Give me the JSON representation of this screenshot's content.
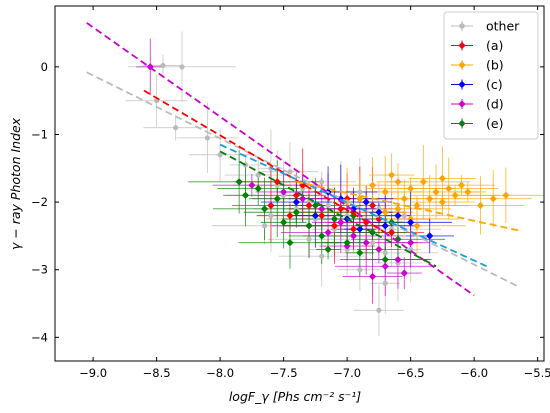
{
  "chart_data": {
    "type": "scatter",
    "xlabel": "logF_γ  [Phs cm⁻² s⁻¹]",
    "ylabel": "γ − ray  Photon  Index",
    "xlim": [
      -9.3,
      -5.45
    ],
    "ylim": [
      -4.35,
      0.9
    ],
    "x_ticks": [
      -9.0,
      -8.5,
      -8.0,
      -7.5,
      -7.0,
      -6.5,
      -6.0,
      -5.5
    ],
    "x_tick_labels": [
      "−9.0",
      "−8.5",
      "−8.0",
      "−7.5",
      "−7.0",
      "−6.5",
      "−6.0",
      "−5.5"
    ],
    "y_ticks": [
      0,
      -1,
      -2,
      -3,
      -4
    ],
    "y_tick_labels": [
      "0",
      "−1",
      "−2",
      "−3",
      "−4"
    ],
    "grid": false,
    "legend_position": "top-right",
    "series": [
      {
        "name": "other",
        "color": "#bbbbbb",
        "marker": "circle",
        "points": [
          [
            -8.45,
            0.02
          ],
          [
            -8.3,
            0.0
          ],
          [
            -8.5,
            -0.5
          ],
          [
            -8.35,
            -0.9
          ],
          [
            -8.1,
            -1.05
          ],
          [
            -8.0,
            -1.3
          ],
          [
            -7.8,
            -1.45
          ],
          [
            -7.7,
            -1.6
          ],
          [
            -7.6,
            -1.5
          ],
          [
            -7.55,
            -1.75
          ],
          [
            -7.5,
            -1.9
          ],
          [
            -7.45,
            -1.55
          ],
          [
            -7.4,
            -2.1
          ],
          [
            -7.35,
            -1.8
          ],
          [
            -7.3,
            -2.0
          ],
          [
            -7.25,
            -2.25
          ],
          [
            -7.2,
            -1.7
          ],
          [
            -7.15,
            -2.05
          ],
          [
            -7.1,
            -2.4
          ],
          [
            -7.05,
            -1.95
          ],
          [
            -7.0,
            -2.2
          ],
          [
            -6.95,
            -2.5
          ],
          [
            -6.9,
            -1.85
          ],
          [
            -6.85,
            -2.3
          ],
          [
            -6.8,
            -2.6
          ],
          [
            -6.75,
            -2.1
          ],
          [
            -6.7,
            -2.75
          ],
          [
            -6.65,
            -2.4
          ],
          [
            -6.6,
            -2.9
          ],
          [
            -6.55,
            -2.2
          ],
          [
            -6.5,
            -2.7
          ],
          [
            -7.6,
            -2.2
          ],
          [
            -7.3,
            -2.55
          ],
          [
            -7.0,
            -2.7
          ],
          [
            -6.9,
            -3.0
          ],
          [
            -7.8,
            -1.9
          ],
          [
            -7.65,
            -2.35
          ],
          [
            -6.7,
            -3.2
          ],
          [
            -6.75,
            -3.6
          ],
          [
            -7.2,
            -2.8
          ]
        ]
      },
      {
        "name": "(a)",
        "color": "#ff0000",
        "marker": "diamond",
        "points": [
          [
            -7.55,
            -1.7
          ],
          [
            -7.4,
            -1.9
          ],
          [
            -7.3,
            -2.05
          ],
          [
            -7.15,
            -1.85
          ],
          [
            -7.05,
            -2.1
          ],
          [
            -6.95,
            -2.15
          ],
          [
            -6.9,
            -1.95
          ],
          [
            -6.85,
            -2.3
          ],
          [
            -6.8,
            -2.05
          ],
          [
            -7.2,
            -2.2
          ],
          [
            -7.0,
            -1.95
          ],
          [
            -6.75,
            -2.25
          ],
          [
            -7.1,
            -2.35
          ],
          [
            -7.45,
            -2.2
          ],
          [
            -6.65,
            -2.45
          ],
          [
            -7.35,
            -1.75
          ],
          [
            -6.95,
            -2.4
          ],
          [
            -7.6,
            -2.05
          ]
        ]
      },
      {
        "name": "(b)",
        "color": "#ffa500",
        "marker": "diamond",
        "points": [
          [
            -6.8,
            -1.75
          ],
          [
            -6.7,
            -1.85
          ],
          [
            -6.6,
            -1.7
          ],
          [
            -6.55,
            -1.95
          ],
          [
            -6.5,
            -1.8
          ],
          [
            -6.45,
            -2.05
          ],
          [
            -6.4,
            -1.7
          ],
          [
            -6.35,
            -1.95
          ],
          [
            -6.3,
            -1.85
          ],
          [
            -6.25,
            -2.0
          ],
          [
            -6.2,
            -1.8
          ],
          [
            -6.15,
            -1.9
          ],
          [
            -6.1,
            -1.75
          ],
          [
            -6.05,
            -1.85
          ],
          [
            -5.95,
            -2.05
          ],
          [
            -5.85,
            -1.95
          ],
          [
            -5.75,
            -1.9
          ],
          [
            -6.6,
            -2.1
          ],
          [
            -6.5,
            -2.25
          ],
          [
            -6.45,
            -2.35
          ],
          [
            -6.9,
            -1.95
          ],
          [
            -6.7,
            -2.15
          ],
          [
            -6.65,
            -1.6
          ],
          [
            -7.0,
            -2.0
          ],
          [
            -6.25,
            -1.65
          ]
        ]
      },
      {
        "name": "(c)",
        "color": "#0000ff",
        "marker": "diamond",
        "points": [
          [
            -7.15,
            -1.85
          ],
          [
            -7.05,
            -1.95
          ],
          [
            -6.95,
            -2.1
          ],
          [
            -6.85,
            -2.0
          ],
          [
            -6.75,
            -2.15
          ],
          [
            -6.7,
            -2.35
          ],
          [
            -6.6,
            -2.2
          ],
          [
            -6.5,
            -2.3
          ],
          [
            -6.35,
            -2.5
          ],
          [
            -7.4,
            -2.0
          ],
          [
            -7.25,
            -2.2
          ],
          [
            -6.9,
            -2.4
          ],
          [
            -7.0,
            -2.25
          ]
        ]
      },
      {
        "name": "(d)",
        "color": "#cc00cc",
        "marker": "diamond",
        "points": [
          [
            -8.55,
            0.0
          ],
          [
            -7.75,
            -1.75
          ],
          [
            -7.5,
            -1.85
          ],
          [
            -7.35,
            -1.95
          ],
          [
            -7.2,
            -2.1
          ],
          [
            -7.05,
            -2.3
          ],
          [
            -6.95,
            -2.5
          ],
          [
            -6.85,
            -2.6
          ],
          [
            -6.75,
            -2.7
          ],
          [
            -6.7,
            -2.95
          ],
          [
            -6.6,
            -2.85
          ],
          [
            -6.55,
            -3.05
          ],
          [
            -6.8,
            -3.1
          ],
          [
            -7.0,
            -2.65
          ],
          [
            -7.3,
            -2.35
          ],
          [
            -6.5,
            -2.6
          ],
          [
            -7.15,
            -2.45
          ]
        ]
      },
      {
        "name": "(e)",
        "color": "#008000",
        "marker": "diamond",
        "points": [
          [
            -7.85,
            -1.7
          ],
          [
            -7.7,
            -1.8
          ],
          [
            -7.55,
            -1.95
          ],
          [
            -7.4,
            -2.15
          ],
          [
            -7.3,
            -2.35
          ],
          [
            -7.2,
            -2.5
          ],
          [
            -7.1,
            -2.25
          ],
          [
            -7.0,
            -2.6
          ],
          [
            -6.9,
            -2.75
          ],
          [
            -6.8,
            -2.45
          ],
          [
            -6.7,
            -2.85
          ],
          [
            -6.6,
            -2.55
          ],
          [
            -7.5,
            -2.3
          ],
          [
            -7.65,
            -2.1
          ],
          [
            -7.25,
            -2.05
          ],
          [
            -6.95,
            -2.2
          ],
          [
            -7.45,
            -2.6
          ],
          [
            -6.65,
            -2.3
          ],
          [
            -7.8,
            -1.9
          ],
          [
            -7.15,
            -2.7
          ]
        ]
      }
    ],
    "fit_lines": [
      {
        "color": "#bbbbbb",
        "x": [
          -9.05,
          -5.65
        ],
        "y": [
          -0.08,
          -3.25
        ]
      },
      {
        "color": "#cc00cc",
        "x": [
          -9.05,
          -6.0
        ],
        "y": [
          0.65,
          -3.38
        ]
      },
      {
        "color": "#ff0000",
        "x": [
          -8.6,
          -6.7
        ],
        "y": [
          -0.35,
          -2.45
        ]
      },
      {
        "color": "#008000",
        "x": [
          -8.0,
          -6.3
        ],
        "y": [
          -1.25,
          -2.95
        ]
      },
      {
        "color": "#1e9be0",
        "x": [
          -8.0,
          -5.9
        ],
        "y": [
          -1.15,
          -2.95
        ]
      },
      {
        "color": "#ffa500",
        "x": [
          -7.4,
          -5.65
        ],
        "y": [
          -1.7,
          -2.42
        ]
      }
    ]
  }
}
